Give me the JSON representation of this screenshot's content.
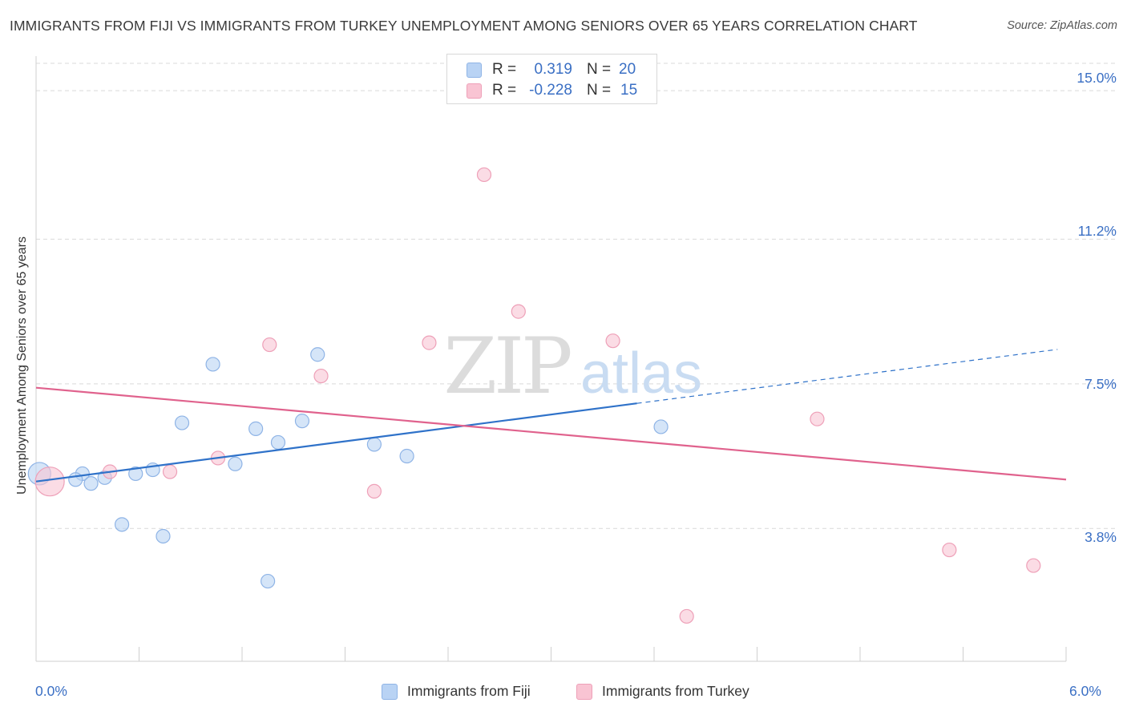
{
  "title": "IMMIGRANTS FROM FIJI VS IMMIGRANTS FROM TURKEY UNEMPLOYMENT AMONG SENIORS OVER 65 YEARS CORRELATION CHART",
  "source": "Source: ZipAtlas.com",
  "watermark": {
    "zip": "ZIP",
    "atlas": "atlas"
  },
  "legend_top": {
    "fiji": {
      "r_label": "R =",
      "r_value": "0.319",
      "n_label": "N =",
      "n_value": "20"
    },
    "turkey": {
      "r_label": "R =",
      "r_value": "-0.228",
      "n_label": "N =",
      "n_value": "15"
    }
  },
  "colors": {
    "fiji_fill": "#b9d3f4",
    "fiji_stroke": "#8fb4e6",
    "fiji_line": "#2f72c9",
    "turkey_fill": "#f9c4d3",
    "turkey_stroke": "#eea0b8",
    "turkey_line": "#e0628d",
    "tick_text": "#3a6fc4",
    "grid": "#d9d9d9"
  },
  "chart_data": {
    "type": "scatter",
    "title": "IMMIGRANTS FROM FIJI VS IMMIGRANTS FROM TURKEY UNEMPLOYMENT AMONG SENIORS OVER 65 YEARS CORRELATION CHART",
    "xlabel": "",
    "ylabel": "Unemployment Among Seniors over 65 years",
    "xlim": [
      0.0,
      6.0
    ],
    "ylim": [
      0.4,
      15.7
    ],
    "x_tick_labels": [
      "0.0%",
      "6.0%"
    ],
    "y_ticks": [
      3.8,
      7.5,
      11.2,
      15.0
    ],
    "y_tick_labels": [
      "3.8%",
      "7.5%",
      "11.2%",
      "15.0%"
    ],
    "grid": true,
    "legend_position": "bottom",
    "series": [
      {
        "name": "Immigrants from Fiji",
        "color": "#b9d3f4",
        "points": [
          {
            "x": 0.02,
            "y": 5.2,
            "big": true
          },
          {
            "x": 0.27,
            "y": 5.2
          },
          {
            "x": 0.23,
            "y": 5.05
          },
          {
            "x": 0.32,
            "y": 4.95
          },
          {
            "x": 0.4,
            "y": 5.1
          },
          {
            "x": 0.5,
            "y": 3.9
          },
          {
            "x": 0.58,
            "y": 5.2
          },
          {
            "x": 0.68,
            "y": 5.3
          },
          {
            "x": 0.74,
            "y": 3.6
          },
          {
            "x": 0.85,
            "y": 6.5
          },
          {
            "x": 1.03,
            "y": 8.0
          },
          {
            "x": 1.16,
            "y": 5.45
          },
          {
            "x": 1.28,
            "y": 6.35
          },
          {
            "x": 1.35,
            "y": 2.45
          },
          {
            "x": 1.41,
            "y": 6.0
          },
          {
            "x": 1.55,
            "y": 6.55
          },
          {
            "x": 1.64,
            "y": 8.25
          },
          {
            "x": 1.97,
            "y": 5.95
          },
          {
            "x": 2.16,
            "y": 5.65
          },
          {
            "x": 3.64,
            "y": 6.4
          }
        ],
        "trend": {
          "x0": 0.0,
          "y0": 5.0,
          "x1": 3.5,
          "y1": 7.0,
          "x_dash_end": 5.95,
          "y_dash_end": 8.38
        }
      },
      {
        "name": "Immigrants from Turkey",
        "color": "#f9c4d3",
        "points": [
          {
            "x": 0.08,
            "y": 5.0,
            "big": true
          },
          {
            "x": 0.43,
            "y": 5.25
          },
          {
            "x": 0.78,
            "y": 5.25
          },
          {
            "x": 1.06,
            "y": 5.6
          },
          {
            "x": 1.36,
            "y": 8.5
          },
          {
            "x": 1.66,
            "y": 7.7
          },
          {
            "x": 1.97,
            "y": 4.75
          },
          {
            "x": 2.29,
            "y": 8.55
          },
          {
            "x": 2.61,
            "y": 12.85
          },
          {
            "x": 2.81,
            "y": 9.35
          },
          {
            "x": 3.36,
            "y": 8.6
          },
          {
            "x": 3.79,
            "y": 1.55
          },
          {
            "x": 4.55,
            "y": 6.6
          },
          {
            "x": 5.32,
            "y": 3.25
          },
          {
            "x": 5.81,
            "y": 2.85
          }
        ],
        "trend": {
          "x0": 0.0,
          "y0": 7.4,
          "x1": 6.0,
          "y1": 5.05
        }
      }
    ]
  },
  "bottom_legend": {
    "fiji": "Immigrants from Fiji",
    "turkey": "Immigrants from Turkey"
  }
}
